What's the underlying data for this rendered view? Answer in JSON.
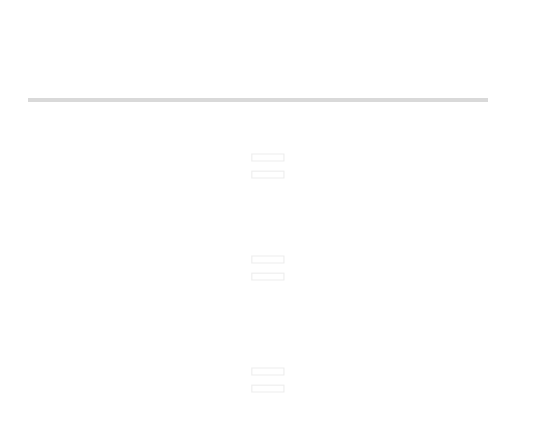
{
  "title": "",
  "rows": [
    {
      "label": "",
      "value": ""
    },
    {
      "label": "",
      "value": ""
    },
    {
      "label": "",
      "value": ""
    }
  ],
  "equals_sign": "=",
  "colors": {
    "background": "#ffffff",
    "text_fill": "#ffffff",
    "text_outline": "#ececec",
    "rule": "#d9d9d9"
  }
}
